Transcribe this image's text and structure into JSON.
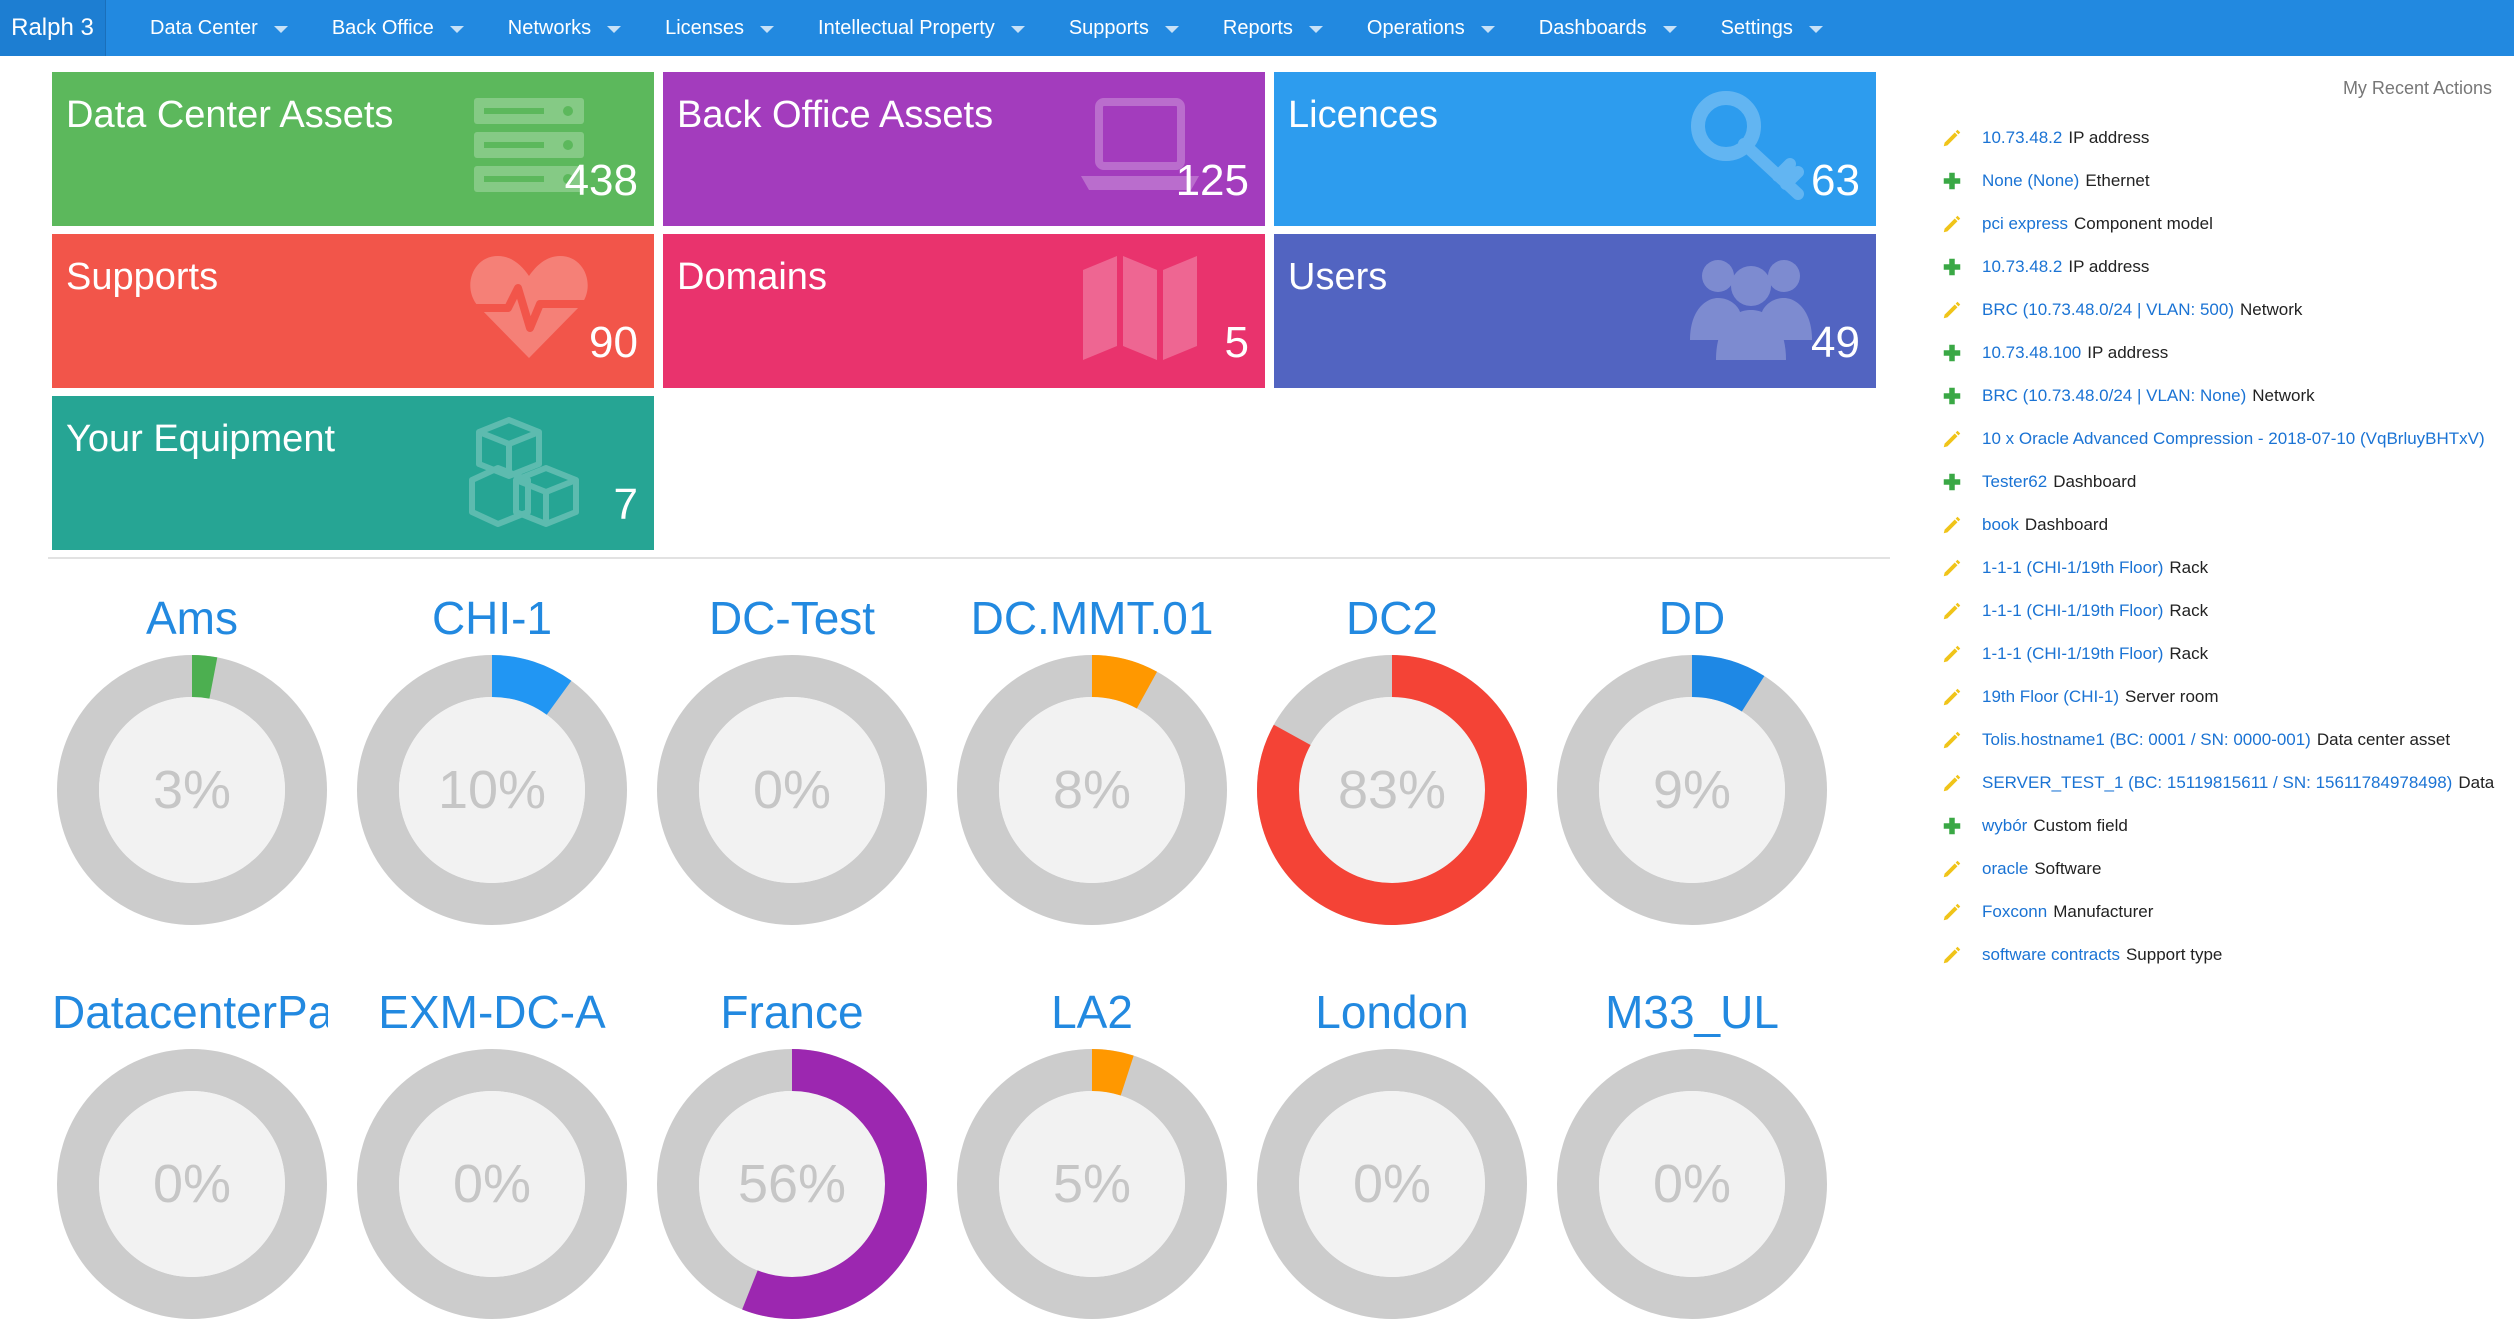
{
  "app": {
    "brand": "Ralph 3"
  },
  "nav": [
    {
      "label": "Data Center"
    },
    {
      "label": "Back Office"
    },
    {
      "label": "Networks"
    },
    {
      "label": "Licenses"
    },
    {
      "label": "Intellectual Property"
    },
    {
      "label": "Supports"
    },
    {
      "label": "Reports"
    },
    {
      "label": "Operations"
    },
    {
      "label": "Dashboards"
    },
    {
      "label": "Settings"
    }
  ],
  "tiles": [
    {
      "label": "Data Center Assets",
      "count": "438",
      "color": "#5cb85c",
      "icon": "server-icon"
    },
    {
      "label": "Back Office Assets",
      "count": "125",
      "color": "#a33cbd",
      "icon": "laptop-icon"
    },
    {
      "label": "Licences",
      "count": "63",
      "color": "#2d9cee",
      "icon": "key-icon"
    },
    {
      "label": "Supports",
      "count": "90",
      "color": "#f2554a",
      "icon": "heartbeat-icon"
    },
    {
      "label": "Domains",
      "count": "5",
      "color": "#e9336d",
      "icon": "map-icon"
    },
    {
      "label": "Users",
      "count": "49",
      "color": "#5264c1",
      "icon": "users-icon"
    },
    {
      "label": "Your Equipment",
      "count": "7",
      "color": "#26a594",
      "icon": "cubes-icon"
    }
  ],
  "datacenters": [
    {
      "name": "Ams",
      "percent": 3,
      "label": "3%",
      "color": "#4caf50"
    },
    {
      "name": "CHI-1",
      "percent": 10,
      "label": "10%",
      "color": "#2196f3"
    },
    {
      "name": "DC-Test",
      "percent": 0,
      "label": "0%",
      "color": "#2196f3"
    },
    {
      "name": "DC.MMT.01",
      "percent": 8,
      "label": "8%",
      "color": "#ff9800"
    },
    {
      "name": "DC2",
      "percent": 83,
      "label": "83%",
      "color": "#f44336"
    },
    {
      "name": "DD",
      "percent": 9,
      "label": "9%",
      "color": "#1e88e5"
    },
    {
      "name": "DatacenterPa",
      "percent": 0,
      "label": "0%",
      "color": "#2196f3"
    },
    {
      "name": "EXM-DC-A",
      "percent": 0,
      "label": "0%",
      "color": "#2196f3"
    },
    {
      "name": "France",
      "percent": 56,
      "label": "56%",
      "color": "#9c27b0"
    },
    {
      "name": "LA2",
      "percent": 5,
      "label": "5%",
      "color": "#ff9800"
    },
    {
      "name": "London",
      "percent": 0,
      "label": "0%",
      "color": "#2196f3"
    },
    {
      "name": "M33_UL",
      "percent": 0,
      "label": "0%",
      "color": "#2196f3"
    }
  ],
  "recent": {
    "title": "My Recent Actions",
    "items": [
      {
        "action": "edit",
        "link": "10.73.48.2",
        "type": "IP address"
      },
      {
        "action": "add",
        "link": "None (None)",
        "type": "Ethernet"
      },
      {
        "action": "edit",
        "link": "pci express",
        "type": "Component model"
      },
      {
        "action": "add",
        "link": "10.73.48.2",
        "type": "IP address"
      },
      {
        "action": "edit",
        "link": "BRC (10.73.48.0/24 | VLAN: 500)",
        "type": "Network"
      },
      {
        "action": "add",
        "link": "10.73.48.100",
        "type": "IP address"
      },
      {
        "action": "add",
        "link": "BRC (10.73.48.0/24 | VLAN: None)",
        "type": "Network"
      },
      {
        "action": "edit",
        "link": "10 x Oracle Advanced Compression - 2018-07-10 (VqBrluyBHTxV)",
        "type": ""
      },
      {
        "action": "add",
        "link": "Tester62",
        "type": "Dashboard"
      },
      {
        "action": "edit",
        "link": "book",
        "type": "Dashboard"
      },
      {
        "action": "edit",
        "link": "1-1-1 (CHI-1/19th Floor)",
        "type": "Rack"
      },
      {
        "action": "edit",
        "link": "1-1-1 (CHI-1/19th Floor)",
        "type": "Rack"
      },
      {
        "action": "edit",
        "link": "1-1-1 (CHI-1/19th Floor)",
        "type": "Rack"
      },
      {
        "action": "edit",
        "link": "19th Floor (CHI-1)",
        "type": "Server room"
      },
      {
        "action": "edit",
        "link": "Tolis.hostname1 (BC: 0001 / SN: 0000-001)",
        "type": "Data center asset"
      },
      {
        "action": "edit",
        "link": "SERVER_TEST_1 (BC: 15119815611 / SN: 15611784978498)",
        "type": "Data"
      },
      {
        "action": "add",
        "link": "wybór",
        "type": "Custom field"
      },
      {
        "action": "edit",
        "link": "oracle",
        "type": "Software"
      },
      {
        "action": "edit",
        "link": "Foxconn",
        "type": "Manufacturer"
      },
      {
        "action": "edit",
        "link": "software contracts",
        "type": "Support type"
      }
    ]
  }
}
